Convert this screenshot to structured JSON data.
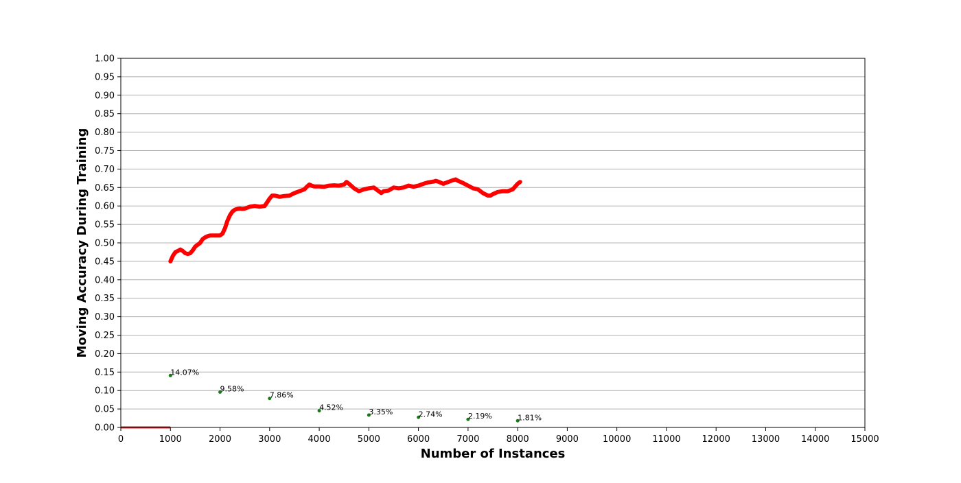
{
  "chart_data": {
    "type": "line",
    "title": "",
    "xlabel": "Number of Instances",
    "ylabel": "Moving Accuracy During Training",
    "xlim": [
      0,
      15000
    ],
    "ylim": [
      0,
      1.0
    ],
    "x_ticks": [
      "0",
      "1000",
      "2000",
      "3000",
      "4000",
      "5000",
      "6000",
      "7000",
      "8000",
      "9000",
      "10000",
      "11000",
      "12000",
      "13000",
      "14000",
      "15000"
    ],
    "y_ticks": [
      "0.00",
      "0.05",
      "0.10",
      "0.15",
      "0.20",
      "0.25",
      "0.30",
      "0.35",
      "0.40",
      "0.45",
      "0.50",
      "0.55",
      "0.60",
      "0.65",
      "0.70",
      "0.75",
      "0.80",
      "0.85",
      "0.90",
      "0.95",
      "1.00"
    ],
    "grid": "horizontal",
    "colors": {
      "accuracy_line": "#ff0000",
      "baseline": "#d62728",
      "annotation_points": "#1a7a1a",
      "grid": "#b0b0b0"
    },
    "series": [
      {
        "style": "accuracy-line",
        "x": [
          1000,
          1050,
          1100,
          1150,
          1200,
          1250,
          1300,
          1350,
          1400,
          1450,
          1500,
          1550,
          1600,
          1650,
          1700,
          1750,
          1800,
          1900,
          2000,
          2050,
          2100,
          2150,
          2200,
          2250,
          2300,
          2350,
          2400,
          2450,
          2500,
          2600,
          2700,
          2800,
          2900,
          2950,
          3000,
          3050,
          3100,
          3200,
          3300,
          3400,
          3500,
          3600,
          3700,
          3750,
          3800,
          3850,
          3900,
          4000,
          4100,
          4200,
          4300,
          4400,
          4500,
          4550,
          4600,
          4700,
          4800,
          4900,
          5000,
          5100,
          5200,
          5250,
          5300,
          5400,
          5500,
          5600,
          5700,
          5800,
          5900,
          6000,
          6100,
          6200,
          6300,
          6350,
          6400,
          6500,
          6600,
          6700,
          6750,
          6800,
          6900,
          7000,
          7100,
          7200,
          7300,
          7400,
          7450,
          7500,
          7600,
          7700,
          7800,
          7900,
          8000,
          8050
        ],
        "y": [
          0.45,
          0.465,
          0.475,
          0.478,
          0.482,
          0.478,
          0.472,
          0.47,
          0.472,
          0.48,
          0.49,
          0.495,
          0.5,
          0.51,
          0.515,
          0.518,
          0.52,
          0.52,
          0.52,
          0.525,
          0.54,
          0.56,
          0.575,
          0.585,
          0.59,
          0.592,
          0.593,
          0.592,
          0.593,
          0.598,
          0.6,
          0.598,
          0.6,
          0.61,
          0.62,
          0.628,
          0.628,
          0.625,
          0.627,
          0.628,
          0.635,
          0.64,
          0.645,
          0.652,
          0.658,
          0.655,
          0.653,
          0.653,
          0.652,
          0.655,
          0.656,
          0.655,
          0.658,
          0.665,
          0.66,
          0.648,
          0.64,
          0.645,
          0.648,
          0.65,
          0.64,
          0.635,
          0.64,
          0.642,
          0.65,
          0.648,
          0.65,
          0.655,
          0.652,
          0.655,
          0.66,
          0.664,
          0.666,
          0.668,
          0.666,
          0.66,
          0.665,
          0.67,
          0.672,
          0.668,
          0.662,
          0.655,
          0.648,
          0.645,
          0.635,
          0.628,
          0.628,
          0.632,
          0.638,
          0.64,
          0.64,
          0.645,
          0.66,
          0.665
        ]
      },
      {
        "style": "baseline",
        "x": [
          0,
          1000
        ],
        "y": [
          0,
          0
        ]
      }
    ],
    "annotations": [
      {
        "x": 1000,
        "y": 0.1407,
        "label": "14.07%"
      },
      {
        "x": 2000,
        "y": 0.0958,
        "label": "9.58%"
      },
      {
        "x": 3000,
        "y": 0.0786,
        "label": "7.86%"
      },
      {
        "x": 4000,
        "y": 0.0452,
        "label": "4.52%"
      },
      {
        "x": 5000,
        "y": 0.0335,
        "label": "3.35%"
      },
      {
        "x": 6000,
        "y": 0.0274,
        "label": "2.74%"
      },
      {
        "x": 7000,
        "y": 0.0219,
        "label": "2.19%"
      },
      {
        "x": 8000,
        "y": 0.0181,
        "label": "1.81%"
      }
    ]
  }
}
